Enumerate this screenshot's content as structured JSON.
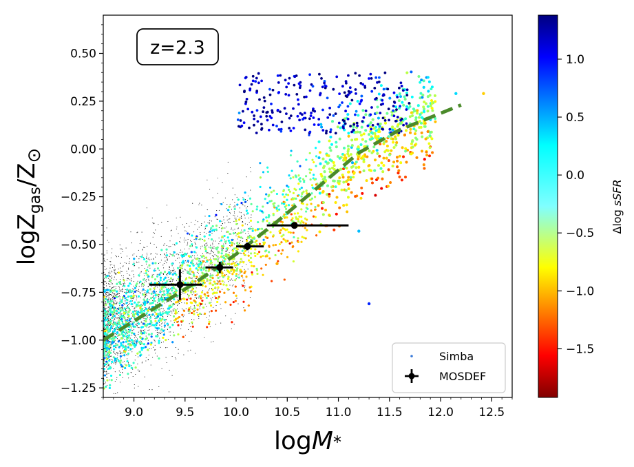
{
  "chart_data": {
    "type": "scatter",
    "annotation": "z=2.3",
    "xlabel": "logM*",
    "ylabel": "logZgas/Z⊙",
    "xlim": [
      8.7,
      12.7
    ],
    "ylim": [
      -1.3,
      0.7
    ],
    "xticks": [
      9.0,
      9.5,
      10.0,
      10.5,
      11.0,
      11.5,
      12.0,
      12.5
    ],
    "xtick_labels": [
      "9.0",
      "9.5",
      "10.0",
      "10.5",
      "11.0",
      "11.5",
      "12.0",
      "12.5"
    ],
    "yticks": [
      0.5,
      0.25,
      0.0,
      -0.25,
      -0.5,
      -0.75,
      -1.0,
      -1.25
    ],
    "ytick_labels": [
      "0.50",
      "0.25",
      "0.00",
      "−0.25",
      "−0.50",
      "−0.75",
      "−1.00",
      "−1.25"
    ],
    "grid": false,
    "legend_position": "bottom-right",
    "colorbar": {
      "label": "Δlog sSFR",
      "range": [
        -1.92,
        1.38
      ],
      "ticks": [
        1.0,
        0.5,
        0.0,
        -0.5,
        -1.0,
        -1.5
      ],
      "tick_labels": [
        "1.0",
        "0.5",
        "0.0",
        "−0.5",
        "−1.0",
        "−1.5"
      ],
      "colormap": "jet"
    },
    "simba": {
      "name": "Simba",
      "relation": {
        "x": [
          8.7,
          12.2
        ],
        "y": [
          -1.0,
          0.23
        ]
      },
      "trend": {
        "x": [
          8.8,
          9.2,
          9.6,
          10.0,
          10.4,
          10.8,
          11.2,
          11.6,
          12.0,
          12.2
        ],
        "y": [
          -0.95,
          -0.84,
          -0.7,
          -0.55,
          -0.38,
          -0.2,
          -0.02,
          0.1,
          0.19,
          0.23
        ]
      }
    },
    "mosdef": {
      "name": "MOSDEF",
      "points": [
        {
          "x": 9.45,
          "y": -0.71,
          "xerr": [
            0.3,
            0.22
          ],
          "yerr": [
            0.08,
            0.08
          ]
        },
        {
          "x": 9.84,
          "y": -0.62,
          "xerr": [
            0.14,
            0.13
          ],
          "yerr": [
            0.03,
            0.03
          ]
        },
        {
          "x": 10.11,
          "y": -0.51,
          "xerr": [
            0.11,
            0.16
          ],
          "yerr": [
            0.02,
            0.02
          ]
        },
        {
          "x": 10.57,
          "y": -0.4,
          "xerr": [
            0.27,
            0.53
          ],
          "yerr": [
            0.01,
            0.01
          ]
        }
      ]
    }
  }
}
